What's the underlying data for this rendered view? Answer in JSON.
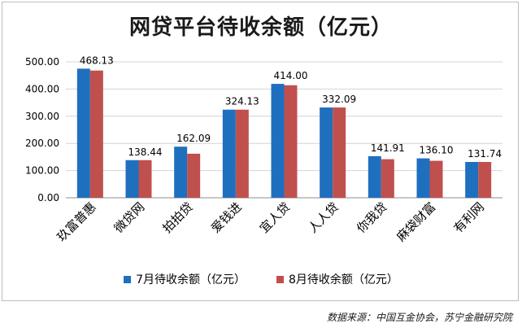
{
  "chart_data": {
    "type": "bar",
    "title": "网贷平台待收余额（亿元）",
    "categories": [
      "玖富普惠",
      "微贷网",
      "拍拍贷",
      "爱钱进",
      "宜人贷",
      "人人贷",
      "你我贷",
      "麻袋财富",
      "有利网"
    ],
    "series": [
      {
        "name": "7月待收余额（亿元）",
        "color": "#1f6fbf",
        "values": [
          475,
          138.44,
          188,
          324.13,
          419,
          332.09,
          153,
          145,
          131.74
        ]
      },
      {
        "name": "8月待收余额（亿元）",
        "color": "#c0504d",
        "values": [
          468.13,
          138.44,
          162.09,
          324.13,
          414.0,
          332.09,
          141.91,
          136.1,
          131.74
        ]
      }
    ],
    "data_labels": [
      "468.13",
      "138.44",
      "162.09",
      "324.13",
      "414.00",
      "332.09",
      "141.91",
      "136.10",
      "131.74"
    ],
    "y_ticks": [
      "0.00",
      "100.00",
      "200.00",
      "300.00",
      "400.00",
      "500.00"
    ],
    "ylim": [
      0,
      500
    ],
    "xlabel": "",
    "ylabel": "",
    "grid": true,
    "legend_position": "bottom"
  },
  "source": "数据来源：中国互金协会，苏宁金融研究院"
}
